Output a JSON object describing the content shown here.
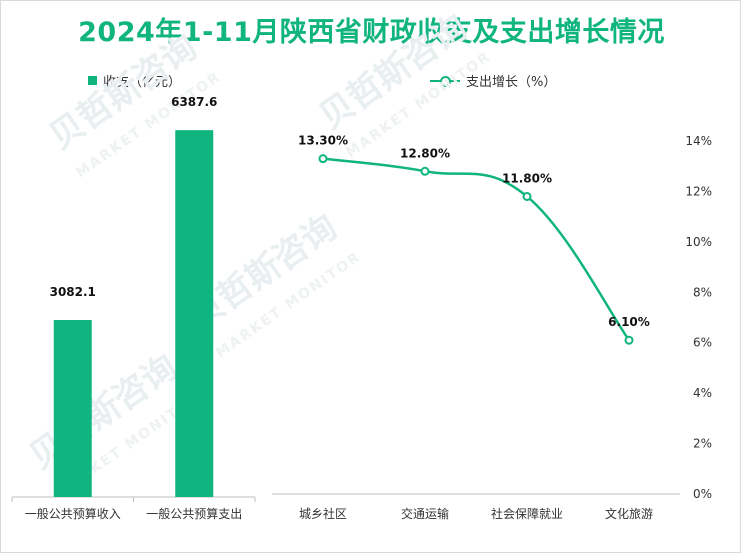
{
  "title": "2024年1-11月陕西省财政收支及支出增长情况",
  "watermark": {
    "brand": "贝哲斯咨询",
    "sub": "MARKET MONITOR"
  },
  "colors": {
    "accent": "#10b47f",
    "text": "#333333"
  },
  "chart_data": [
    {
      "type": "bar",
      "legend": "收支（亿元）",
      "legend_position": "top-left",
      "categories": [
        "一般公共预算收入",
        "一般公共预算支出"
      ],
      "values": [
        3082.1,
        6387.6
      ],
      "value_labels": [
        "3082.1",
        "6387.6"
      ],
      "ylim": [
        0,
        7000
      ],
      "grid": false
    },
    {
      "type": "line",
      "legend": "支出增长（%）",
      "legend_position": "top-center",
      "categories": [
        "城乡社区",
        "交通运输",
        "社会保障就业",
        "文化旅游"
      ],
      "values": [
        13.3,
        12.8,
        11.8,
        6.1
      ],
      "value_labels": [
        "13.30%",
        "12.80%",
        "11.80%",
        "6.10%"
      ],
      "ylim": [
        0,
        14
      ],
      "yticks": [
        "0%",
        "2%",
        "4%",
        "6%",
        "8%",
        "10%",
        "12%",
        "14%"
      ],
      "y_axis_position": "right",
      "smooth": true,
      "grid": false
    }
  ]
}
